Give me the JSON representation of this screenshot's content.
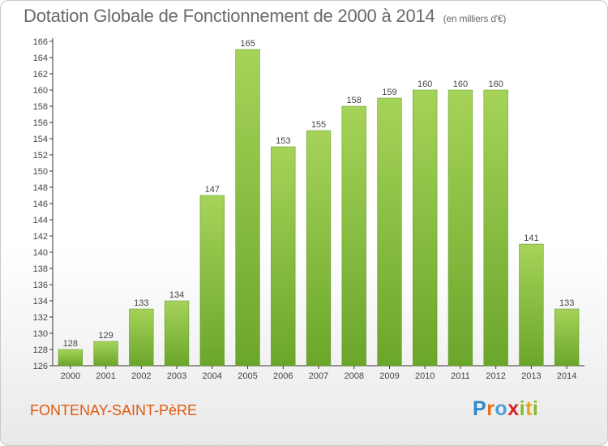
{
  "header": {
    "title": "Dotation Globale de Fonctionnement de 2000 à 2014",
    "subtitle": "(en milliers d'€)"
  },
  "footer": {
    "commune": "FONTENAY-SAINT-PèRE",
    "logo_letters": [
      "P",
      "r",
      "o",
      "x",
      "i",
      "t",
      "i"
    ]
  },
  "colors": {
    "bar_top": "#a6d35a",
    "bar_bottom": "#6aa62a",
    "commune_text": "#e05a10",
    "title_text": "#6a6a6a"
  },
  "chart_data": {
    "type": "bar",
    "title": "Dotation Globale de Fonctionnement de 2000 à 2014",
    "subtitle": "(en milliers d'€)",
    "xlabel": "",
    "ylabel": "",
    "categories": [
      "2000",
      "2001",
      "2002",
      "2003",
      "2004",
      "2005",
      "2006",
      "2007",
      "2008",
      "2009",
      "2010",
      "2011",
      "2012",
      "2013",
      "2014"
    ],
    "values": [
      128,
      129,
      133,
      134,
      147,
      165,
      153,
      155,
      158,
      159,
      160,
      160,
      160,
      141,
      133
    ],
    "ylim": [
      126,
      166
    ],
    "yticks": [
      126,
      128,
      130,
      132,
      134,
      136,
      138,
      140,
      142,
      144,
      146,
      148,
      150,
      152,
      154,
      156,
      158,
      160,
      162,
      164,
      166
    ],
    "grid": false,
    "data_labels": true
  }
}
